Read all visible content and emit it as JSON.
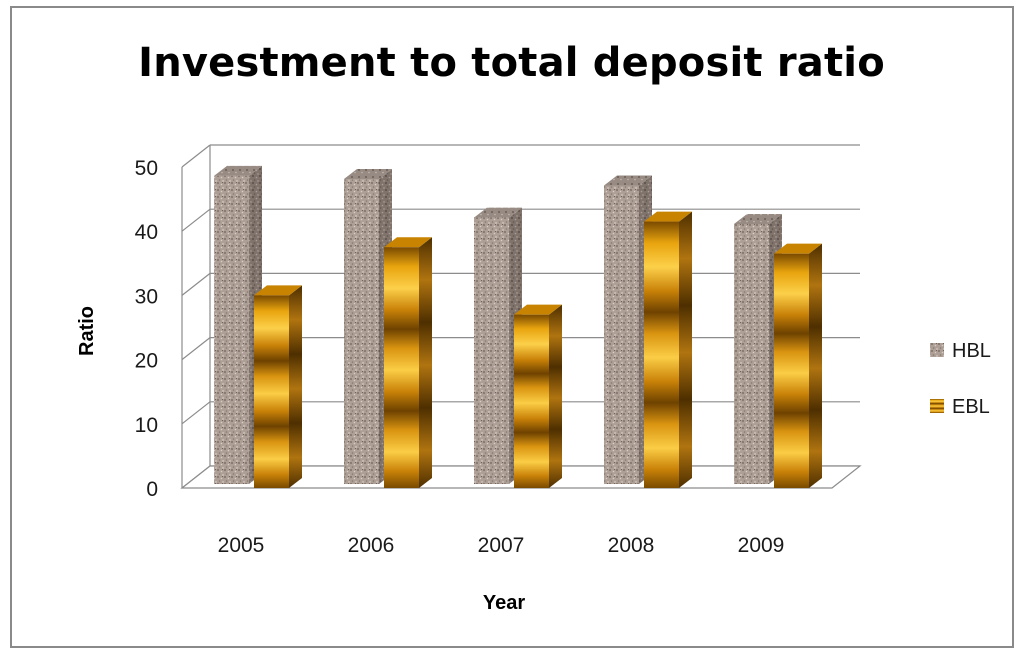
{
  "chart_data": {
    "type": "bar",
    "title": "Investment to total deposit ratio",
    "xlabel": "Year",
    "ylabel": "Ratio",
    "categories": [
      "2005",
      "2006",
      "2007",
      "2008",
      "2009"
    ],
    "series": [
      {
        "name": "HBL",
        "values": [
          48,
          47.5,
          41.5,
          46.5,
          40.5
        ],
        "color": "#a89c94"
      },
      {
        "name": "EBL",
        "values": [
          30,
          37.5,
          27,
          41.5,
          36.5
        ],
        "color": "#e29a0c"
      }
    ],
    "ylim": [
      0,
      50
    ],
    "yticks": [
      0,
      10,
      20,
      30,
      40,
      50
    ],
    "grid": true,
    "legend": "right",
    "style": "3d"
  }
}
